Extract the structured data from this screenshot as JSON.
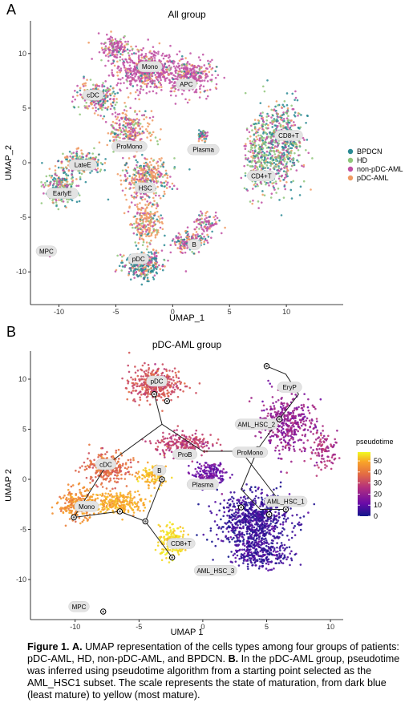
{
  "chart_data": [
    {
      "type": "scatter",
      "panel": "A",
      "title": "All group",
      "xlabel": "UMAP_1",
      "ylabel": "UMAP_2",
      "xlim": [
        -12.5,
        15
      ],
      "ylim": [
        -13,
        13
      ],
      "xticks": [
        -10,
        -5,
        0,
        5,
        10
      ],
      "yticks": [
        -10,
        -5,
        0,
        5,
        10
      ],
      "grid": false,
      "legend_position": "right",
      "series": [
        {
          "name": "BPDCN",
          "color": "#2a8a94"
        },
        {
          "name": "HD",
          "color": "#8fc67a"
        },
        {
          "name": "non-pDC-AML",
          "color": "#c04fa3"
        },
        {
          "name": "pDC-AML",
          "color": "#f09a62"
        }
      ],
      "cluster_labels": [
        {
          "text": "Mono",
          "x": -2,
          "y": 8.8
        },
        {
          "text": "APC",
          "x": 1.2,
          "y": 7.2
        },
        {
          "text": "cDC",
          "x": -7,
          "y": 6.2
        },
        {
          "text": "ProMono",
          "x": -3.8,
          "y": 1.5
        },
        {
          "text": "Plasma",
          "x": 2.7,
          "y": 1.2
        },
        {
          "text": "CD8+T",
          "x": 10.2,
          "y": 2.5
        },
        {
          "text": "CD4+T",
          "x": 7.8,
          "y": -1.2
        },
        {
          "text": "LateE",
          "x": -7.9,
          "y": -0.2
        },
        {
          "text": "EarlyE",
          "x": -9.7,
          "y": -2.8
        },
        {
          "text": "HSC",
          "x": -2.4,
          "y": -2.3
        },
        {
          "text": "B",
          "x": 1.9,
          "y": -7.5
        },
        {
          "text": "pDC",
          "x": -3,
          "y": -8.8
        },
        {
          "text": "MPC",
          "x": -11.1,
          "y": -8.1
        }
      ]
    },
    {
      "type": "scatter",
      "panel": "B",
      "title": "pDC-AML group",
      "xlabel": "UMAP 1",
      "ylabel": "UMAP 2",
      "xlim": [
        -13.5,
        11
      ],
      "ylim": [
        -14,
        12.8
      ],
      "xticks": [
        -10,
        -5,
        0,
        5,
        10
      ],
      "yticks": [
        -10,
        -5,
        0,
        5,
        10
      ],
      "grid": false,
      "legend_position": "right",
      "color_scale": {
        "title": "pseudotime",
        "range": [
          0,
          58
        ],
        "ticks": [
          0,
          10,
          20,
          30,
          40,
          50
        ],
        "colors": [
          "#12168c",
          "#6a0aa8",
          "#b4307d",
          "#e26a45",
          "#f9a428",
          "#f0f921"
        ]
      },
      "cluster_labels": [
        {
          "text": "pDC",
          "x": -3.6,
          "y": 9.8
        },
        {
          "text": "EryP",
          "x": 6.8,
          "y": 9.2
        },
        {
          "text": "AML_HSC_2",
          "x": 4.2,
          "y": 5.5
        },
        {
          "text": "ProB",
          "x": -1.4,
          "y": 2.5
        },
        {
          "text": "ProMono",
          "x": 3.7,
          "y": 2.7
        },
        {
          "text": "cDC",
          "x": -7.6,
          "y": 1.5
        },
        {
          "text": "B",
          "x": -3.4,
          "y": 0.9
        },
        {
          "text": "Plasma",
          "x": 0,
          "y": -0.5
        },
        {
          "text": "AML_HSC_1",
          "x": 6.5,
          "y": -2.2
        },
        {
          "text": "Mono",
          "x": -9.1,
          "y": -2.7
        },
        {
          "text": "CD8+T",
          "x": -1.7,
          "y": -6.4
        },
        {
          "text": "AML_HSC_3",
          "x": 1,
          "y": -9.1
        },
        {
          "text": "MPC",
          "x": -9.7,
          "y": -12.7
        }
      ]
    }
  ],
  "panels": {
    "a_letter": "A",
    "b_letter": "B"
  },
  "caption": {
    "label_1": "Figure 1.",
    "label_a": "A.",
    "text_a": "UMAP representation of the cells types among four groups of patients: pDC-AML, HD, non-pDC-AML, and BPDCN.",
    "label_b": "B.",
    "text_b": "In the pDC-AML group, pseudotime was inferred using pseudotime algorithm from a starting point selected as the AML_HSC1 subset. The scale represents the state of maturation, from dark blue (least mature) to yellow (most mature)."
  }
}
